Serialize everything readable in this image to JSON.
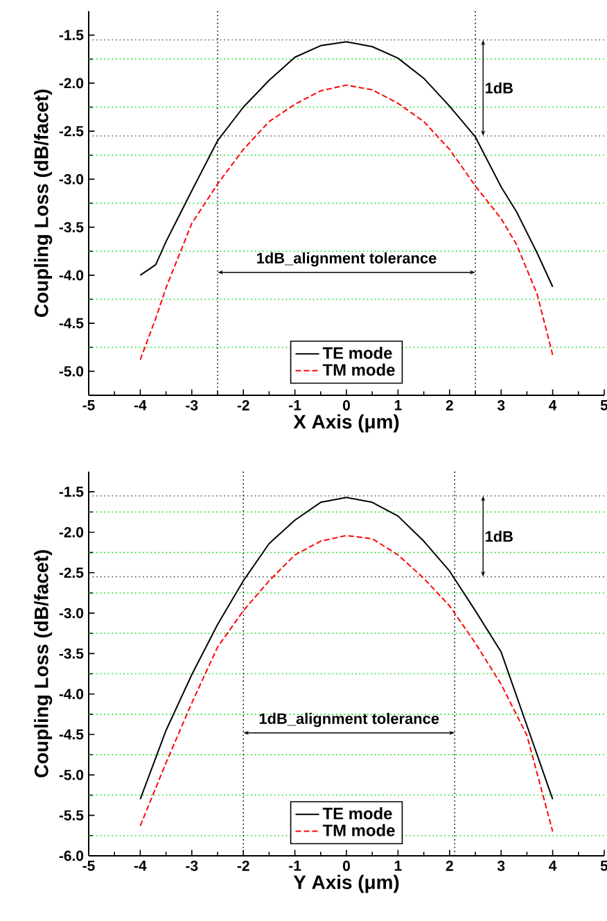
{
  "chart_data": [
    {
      "type": "line",
      "xlabel": "X Axis    (μm)",
      "ylabel": "Coupling Loss   (dB/facet)",
      "x": [
        -4,
        -3.7,
        -3.5,
        -3,
        -2.5,
        -2,
        -1.5,
        -1,
        -0.5,
        0,
        0.5,
        1,
        1.5,
        2,
        2.5,
        3,
        3.3,
        3.7,
        4
      ],
      "series": [
        {
          "name": "TE mode",
          "color": "#000000",
          "line_style": "solid",
          "values": [
            -4.0,
            -3.89,
            -3.65,
            -3.12,
            -2.6,
            -2.25,
            -1.97,
            -1.73,
            -1.61,
            -1.57,
            -1.62,
            -1.74,
            -1.95,
            -2.24,
            -2.56,
            -3.08,
            -3.34,
            -3.77,
            -4.12
          ]
        },
        {
          "name": "TM mode",
          "color": "#ff0000",
          "line_style": "dashed",
          "values": [
            -4.88,
            -4.45,
            -4.13,
            -3.46,
            -3.05,
            -2.69,
            -2.4,
            -2.22,
            -2.08,
            -2.02,
            -2.07,
            -2.21,
            -2.4,
            -2.69,
            -3.07,
            -3.41,
            -3.68,
            -4.2,
            -4.83
          ]
        }
      ],
      "xlim": [
        -5,
        5
      ],
      "xticks": [
        -5,
        -4,
        -3,
        -2,
        -1,
        0,
        1,
        2,
        3,
        4,
        5
      ],
      "ylim": [
        -5.25,
        -1.25
      ],
      "yticks": [
        {
          "value": -5,
          "label": "-5.0"
        },
        -4.5,
        {
          "value": -4,
          "label": "-4.0"
        },
        -3.5,
        {
          "value": -3,
          "label": "-3.0"
        },
        -2.5,
        {
          "value": -2,
          "label": "-2.0"
        },
        -1.5
      ],
      "ref_lines": [
        {
          "axis": "y",
          "value": -1.75,
          "color": "#00dd00",
          "line_style": "dotted"
        },
        {
          "axis": "y",
          "value": -2.25,
          "color": "#00dd00",
          "line_style": "dotted"
        },
        {
          "axis": "y",
          "value": -2.75,
          "color": "#00dd00",
          "line_style": "dotted"
        },
        {
          "axis": "y",
          "value": -3.25,
          "color": "#00dd00",
          "line_style": "dotted"
        },
        {
          "axis": "y",
          "value": -3.75,
          "color": "#00dd00",
          "line_style": "dotted"
        },
        {
          "axis": "y",
          "value": -4.25,
          "color": "#00dd00",
          "line_style": "dotted"
        },
        {
          "axis": "y",
          "value": -4.75,
          "color": "#00dd00",
          "line_style": "dotted"
        },
        {
          "axis": "y",
          "value": -1.55,
          "color": "#555555",
          "line_style": "dotted"
        },
        {
          "axis": "y",
          "value": -2.55,
          "color": "#555555",
          "line_style": "dotted"
        },
        {
          "axis": "x",
          "value": -2.5,
          "color": "#000000",
          "line_style": "dotted"
        },
        {
          "axis": "x",
          "value": 2.5,
          "color": "#000000",
          "line_style": "dotted"
        }
      ],
      "annotations": [
        "1dB",
        "1dB_alignment tolerance"
      ],
      "legend": "bottom",
      "marker": "none"
    },
    {
      "type": "line",
      "xlabel": "Y Axis    (μm)",
      "ylabel": "Coupling Loss   (dB/facet)",
      "x": [
        -4,
        -3.5,
        -3,
        -2.5,
        -2,
        -1.5,
        -1,
        -0.5,
        0,
        0.5,
        1,
        1.5,
        2,
        2.5,
        3,
        3.5,
        4
      ],
      "series": [
        {
          "name": "TE mode",
          "color": "#000000",
          "line_style": "solid",
          "values": [
            -5.3,
            -4.45,
            -3.76,
            -3.14,
            -2.6,
            -2.14,
            -1.85,
            -1.63,
            -1.57,
            -1.63,
            -1.8,
            -2.11,
            -2.48,
            -2.97,
            -3.48,
            -4.39,
            -5.3
          ]
        },
        {
          "name": "TM mode",
          "color": "#ff0000",
          "line_style": "dashed",
          "values": [
            -5.63,
            -4.85,
            -4.11,
            -3.42,
            -2.97,
            -2.6,
            -2.28,
            -2.11,
            -2.04,
            -2.08,
            -2.28,
            -2.57,
            -2.91,
            -3.37,
            -3.88,
            -4.51,
            -5.7
          ]
        }
      ],
      "xlim": [
        -5,
        5
      ],
      "xticks": [
        -5,
        -4,
        -3,
        -2,
        -1,
        0,
        1,
        2,
        3,
        4,
        5
      ],
      "ylim": [
        -6.0,
        -1.25
      ],
      "yticks": [
        {
          "value": -6,
          "label": "-6.0"
        },
        -5.5,
        {
          "value": -5,
          "label": "-5.0"
        },
        -4.5,
        {
          "value": -4,
          "label": "-4.0"
        },
        -3.5,
        {
          "value": -3,
          "label": "-3.0"
        },
        -2.5,
        {
          "value": -2,
          "label": "-2.0"
        },
        -1.5
      ],
      "ref_lines": [
        {
          "axis": "y",
          "value": -1.75,
          "color": "#00dd00",
          "line_style": "dotted"
        },
        {
          "axis": "y",
          "value": -2.25,
          "color": "#00dd00",
          "line_style": "dotted"
        },
        {
          "axis": "y",
          "value": -2.75,
          "color": "#00dd00",
          "line_style": "dotted"
        },
        {
          "axis": "y",
          "value": -3.25,
          "color": "#00dd00",
          "line_style": "dotted"
        },
        {
          "axis": "y",
          "value": -3.75,
          "color": "#00dd00",
          "line_style": "dotted"
        },
        {
          "axis": "y",
          "value": -4.25,
          "color": "#00dd00",
          "line_style": "dotted"
        },
        {
          "axis": "y",
          "value": -4.75,
          "color": "#00dd00",
          "line_style": "dotted"
        },
        {
          "axis": "y",
          "value": -5.25,
          "color": "#00dd00",
          "line_style": "dotted"
        },
        {
          "axis": "y",
          "value": -5.75,
          "color": "#00dd00",
          "line_style": "dotted"
        },
        {
          "axis": "y",
          "value": -1.55,
          "color": "#555555",
          "line_style": "dotted"
        },
        {
          "axis": "y",
          "value": -2.55,
          "color": "#555555",
          "line_style": "dotted"
        },
        {
          "axis": "x",
          "value": -2.0,
          "color": "#000000",
          "line_style": "dotted"
        },
        {
          "axis": "x",
          "value": 2.1,
          "color": "#000000",
          "line_style": "dotted"
        }
      ],
      "annotations": [
        "1dB",
        "1dB_alignment tolerance"
      ],
      "legend": "bottom",
      "marker": "none"
    }
  ]
}
